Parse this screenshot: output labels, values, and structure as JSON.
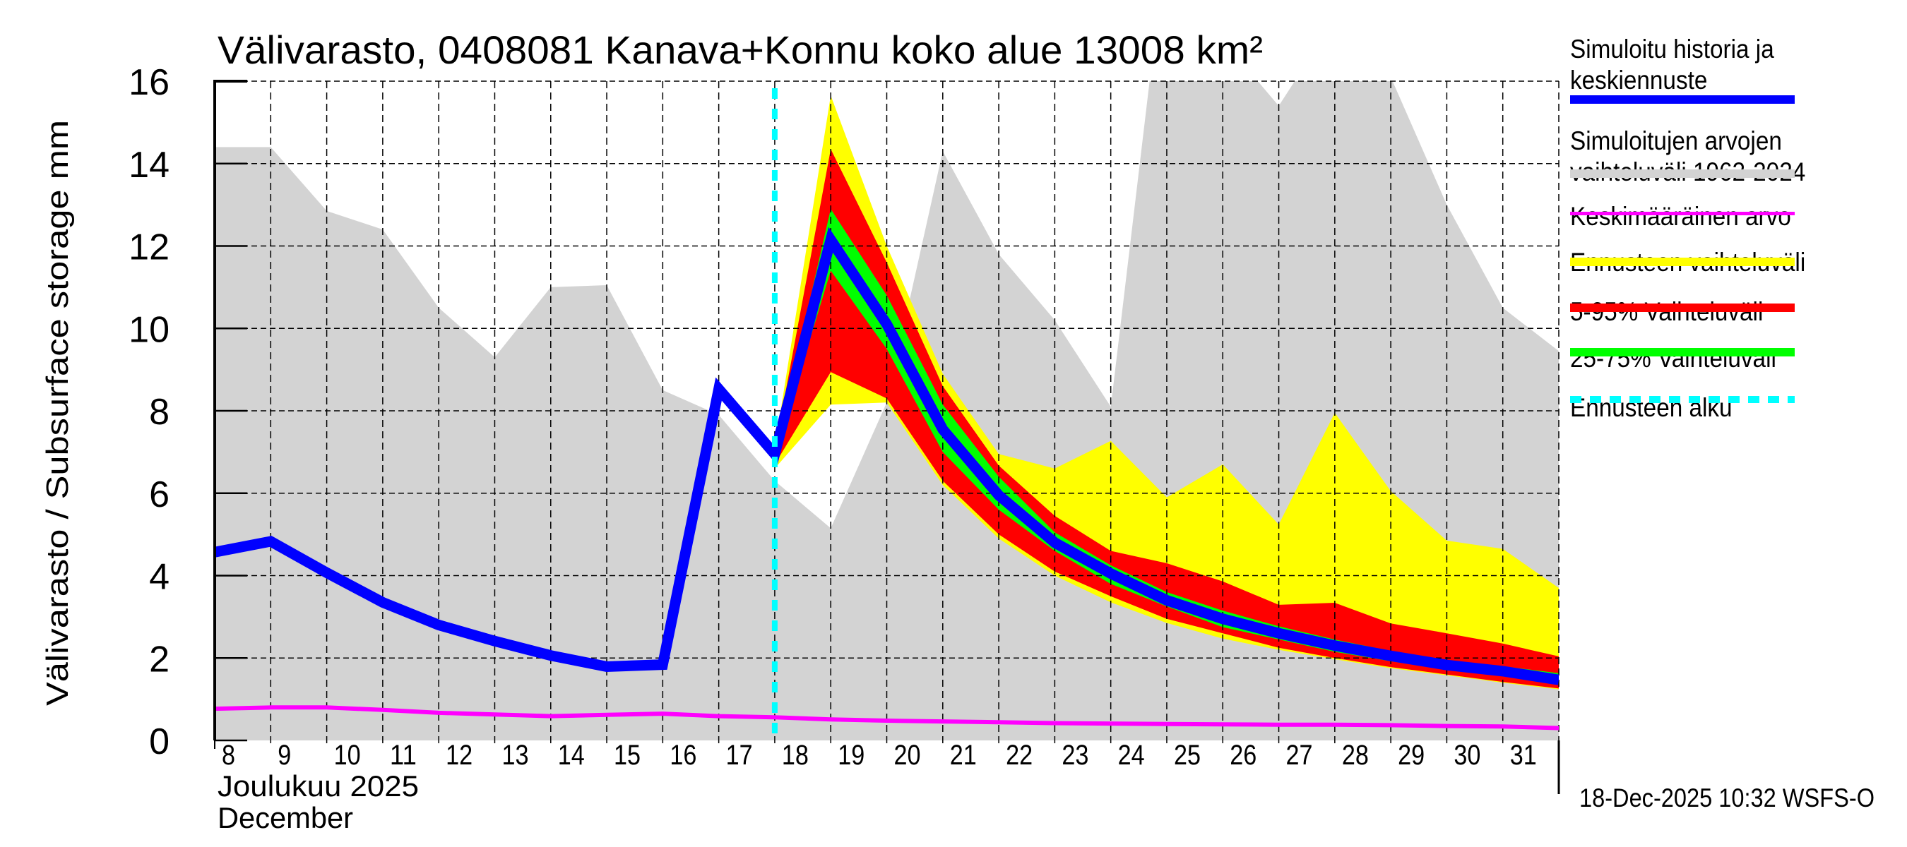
{
  "chart_data": {
    "type": "area",
    "title": "Välivarasto, 0408081 Kanava+Konnu koko alue 13008 km²",
    "ylabel": "Välivarasto / Subsurface storage  mm",
    "xlabel_fi": "Joulukuu  2025",
    "xlabel_en": "December",
    "ylim": [
      0,
      16
    ],
    "yticks": [
      0,
      2,
      4,
      6,
      8,
      10,
      12,
      14,
      16
    ],
    "x_days": [
      8,
      9,
      10,
      11,
      12,
      13,
      14,
      15,
      16,
      17,
      18,
      19,
      20,
      21,
      22,
      23,
      24,
      25,
      26,
      27,
      28,
      29,
      30,
      31,
      32
    ],
    "x_tick_labels": [
      "8",
      "9",
      "10",
      "11",
      "12",
      "13",
      "14",
      "15",
      "16",
      "17",
      "18",
      "19",
      "20",
      "21",
      "22",
      "23",
      "24",
      "25",
      "26",
      "27",
      "28",
      "29",
      "30",
      "31"
    ],
    "grid": true,
    "forecast_start_day": 18,
    "historical_range": {
      "name": "Simuloitujen arvojen vaihteluväli 1962-2024",
      "upper": [
        14.4,
        14.4,
        12.85,
        12.4,
        10.5,
        9.3,
        11.0,
        11.05,
        8.5,
        7.9,
        6.3,
        5.15,
        8.2,
        14.3,
        11.8,
        10.2,
        8.1,
        19.5,
        17.0,
        15.4,
        17.5,
        16.1,
        13.0,
        10.5,
        9.45
      ],
      "lower": [
        0,
        0,
        0,
        0,
        0,
        0,
        0,
        0,
        0,
        0,
        0,
        0,
        0,
        0,
        0,
        0,
        0,
        0,
        0,
        0,
        0,
        0,
        0,
        0,
        0
      ]
    },
    "mean": {
      "name": "Keskimääräinen arvo",
      "values": [
        0.77,
        0.8,
        0.8,
        0.74,
        0.67,
        0.63,
        0.59,
        0.62,
        0.65,
        0.59,
        0.56,
        0.51,
        0.48,
        0.46,
        0.44,
        0.42,
        0.41,
        0.4,
        0.39,
        0.38,
        0.38,
        0.37,
        0.35,
        0.34,
        0.3
      ]
    },
    "simulated": {
      "name": "Simuloitu historia ja keskiennuste",
      "days": [
        8,
        9,
        10,
        11,
        12,
        13,
        14,
        15,
        16,
        17,
        18,
        19,
        20,
        21,
        22,
        23,
        24,
        25,
        26,
        27,
        28,
        29,
        30,
        31,
        32
      ],
      "values": [
        4.57,
        4.83,
        4.07,
        3.35,
        2.8,
        2.41,
        2.06,
        1.79,
        1.84,
        8.53,
        6.95,
        12.15,
        10.1,
        7.55,
        5.95,
        4.8,
        4.05,
        3.4,
        2.95,
        2.6,
        2.3,
        2.05,
        1.83,
        1.68,
        1.47
      ]
    },
    "forecast_days": [
      18,
      19,
      20,
      21,
      22,
      23,
      24,
      25,
      26,
      27,
      28,
      29,
      30,
      31,
      32
    ],
    "forecast_range": {
      "name": "Ennusteen vaihteluväli",
      "upper": [
        7.1,
        15.65,
        12.0,
        8.9,
        6.95,
        6.6,
        7.27,
        5.9,
        6.7,
        5.24,
        7.95,
        6.05,
        4.85,
        4.65,
        3.7
      ],
      "lower": [
        6.6,
        8.15,
        8.2,
        6.2,
        4.9,
        4.0,
        3.35,
        2.85,
        2.47,
        2.2,
        1.97,
        1.75,
        1.58,
        1.4,
        1.24
      ]
    },
    "p5_95": {
      "name": "5-95% Vaihteluväli",
      "upper": [
        7.05,
        14.35,
        11.6,
        8.6,
        6.67,
        5.45,
        4.6,
        4.3,
        3.86,
        3.29,
        3.34,
        2.84,
        2.6,
        2.35,
        2.04
      ],
      "lower": [
        6.7,
        8.94,
        8.3,
        6.3,
        5.0,
        4.1,
        3.5,
        2.95,
        2.6,
        2.25,
        2.0,
        1.78,
        1.6,
        1.42,
        1.26
      ]
    },
    "p25_75": {
      "name": "25-75% Vaihteluväli",
      "upper": [
        7.0,
        12.9,
        10.8,
        8.15,
        6.4,
        5.05,
        4.25,
        3.6,
        3.15,
        2.77,
        2.45,
        2.17,
        1.95,
        1.8,
        1.63
      ],
      "lower": [
        6.9,
        11.4,
        9.5,
        7.0,
        5.6,
        4.6,
        3.8,
        3.25,
        2.75,
        2.45,
        2.15,
        1.92,
        1.72,
        1.56,
        1.38
      ]
    },
    "legend_position": "right",
    "colors": {
      "simulated": "#0000ff",
      "historical_range": "#d3d3d3",
      "mean": "#ff00ff",
      "forecast_range": "#ffff00",
      "p5_95": "#ff0000",
      "p25_75": "#00ff00",
      "forecast_start": "#00ffff"
    }
  },
  "legend": [
    {
      "lines": [
        "Simuloitu historia ja",
        "keskiennuste"
      ],
      "key": "simulated"
    },
    {
      "lines": [
        "Simuloitujen arvojen",
        "vaihteluväli 1962-2024"
      ],
      "key": "historical_range"
    },
    {
      "lines": [
        "Keskimääräinen arvo"
      ],
      "key": "mean"
    },
    {
      "lines": [
        "Ennusteen vaihteluväli"
      ],
      "key": "forecast_range"
    },
    {
      "lines": [
        "5-95% Vaihteluväli"
      ],
      "key": "p5_95"
    },
    {
      "lines": [
        "25-75% Vaihteluväli"
      ],
      "key": "p25_75"
    },
    {
      "lines": [
        "Ennusteen alku"
      ],
      "key": "forecast_start"
    }
  ],
  "footer": {
    "timestamp": "18-Dec-2025 10:32 WSFS-O"
  }
}
